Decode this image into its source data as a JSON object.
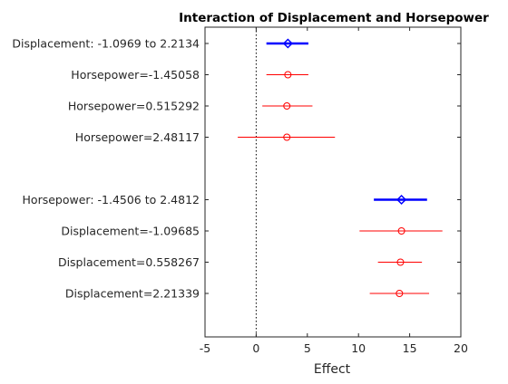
{
  "chart_data": {
    "type": "interaction-effects",
    "title": "Interaction of Displacement and Horsepower",
    "xlabel": "Effect",
    "xlim": [
      -5,
      20
    ],
    "xticks": [
      -5,
      0,
      5,
      10,
      15,
      20
    ],
    "reference_line_x": 0,
    "rows": [
      {
        "label": "Displacement: -1.0969 to 2.2134",
        "kind": "main",
        "estimate": 3.1,
        "lower": 1.0,
        "upper": 5.1
      },
      {
        "label": "Horsepower=-1.45058",
        "kind": "conditional",
        "estimate": 3.1,
        "lower": 1.0,
        "upper": 5.1
      },
      {
        "label": "Horsepower=0.515292",
        "kind": "conditional",
        "estimate": 3.0,
        "lower": 0.6,
        "upper": 5.5
      },
      {
        "label": "Horsepower=2.48117",
        "kind": "conditional",
        "estimate": 3.0,
        "lower": -1.8,
        "upper": 7.7
      },
      {
        "label": "",
        "kind": "gap"
      },
      {
        "label": "Horsepower: -1.4506 to 2.4812",
        "kind": "main",
        "estimate": 14.2,
        "lower": 11.5,
        "upper": 16.7
      },
      {
        "label": "Displacement=-1.09685",
        "kind": "conditional",
        "estimate": 14.2,
        "lower": 10.1,
        "upper": 18.2
      },
      {
        "label": "Displacement=0.558267",
        "kind": "conditional",
        "estimate": 14.1,
        "lower": 11.9,
        "upper": 16.2
      },
      {
        "label": "Displacement=2.21339",
        "kind": "conditional",
        "estimate": 14.0,
        "lower": 11.1,
        "upper": 16.9
      }
    ],
    "colors": {
      "main": "#0000ff",
      "conditional": "#ff0000",
      "reference": "#000000",
      "axis": "#262626"
    },
    "grid": false
  }
}
